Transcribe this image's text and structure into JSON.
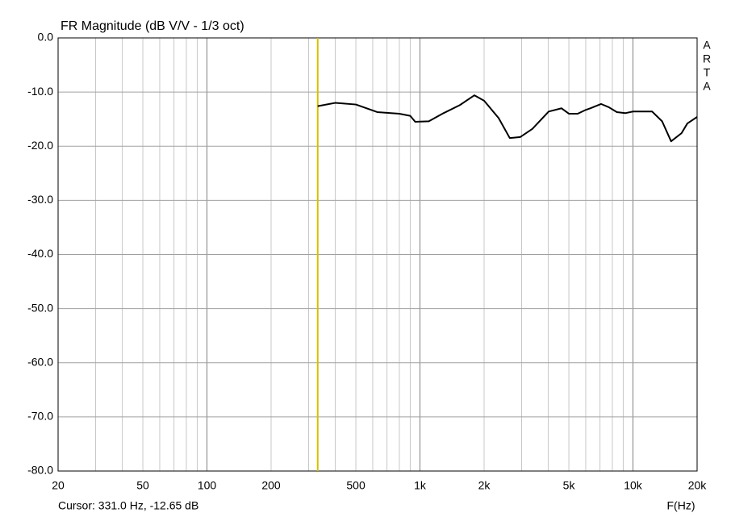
{
  "chart_data": {
    "type": "line",
    "title": "FR Magnitude (dB V/V - 1/3 oct)",
    "side_label": [
      "A",
      "R",
      "T",
      "A"
    ],
    "x_label": "F(Hz)",
    "x_scale": "log",
    "xlim": [
      20,
      20000
    ],
    "ylim": [
      -80,
      0
    ],
    "xticks": [
      20,
      50,
      100,
      200,
      500,
      {
        "value": 1000,
        "label": "1k"
      },
      {
        "value": 2000,
        "label": "2k"
      },
      {
        "value": 5000,
        "label": "5k"
      },
      {
        "value": 10000,
        "label": "10k"
      },
      {
        "value": 20000,
        "label": "20k"
      }
    ],
    "xminorticks": [
      30,
      40,
      60,
      70,
      80,
      90,
      300,
      400,
      600,
      700,
      800,
      900,
      3000,
      4000,
      6000,
      7000,
      8000,
      9000
    ],
    "yticks": [
      {
        "value": 0,
        "label": "0.0"
      },
      {
        "value": -10,
        "label": "-10.0"
      },
      {
        "value": -20,
        "label": "-20.0"
      },
      {
        "value": -30,
        "label": "-30.0"
      },
      {
        "value": -40,
        "label": "-40.0"
      },
      {
        "value": -50,
        "label": "-50.0"
      },
      {
        "value": -60,
        "label": "-60.0"
      },
      {
        "value": -70,
        "label": "-70.0"
      },
      {
        "value": -80,
        "label": "-80.0"
      }
    ],
    "grid": true,
    "cursor": {
      "x": 331,
      "color": "#d4c000",
      "label": "Cursor: 331.0 Hz, -12.65 dB"
    },
    "x": [
      331,
      400,
      500,
      630,
      800,
      900,
      950,
      1100,
      1290,
      1540,
      1800,
      2000,
      2340,
      2640,
      2960,
      3370,
      4020,
      4620,
      5000,
      5500,
      6000,
      6300,
      7080,
      7700,
      8400,
      9200,
      10000,
      12300,
      13700,
      15100,
      16900,
      18000,
      20000
    ],
    "series": [
      {
        "color": "#000000",
        "values": [
          -12.6,
          -12.0,
          -12.3,
          -13.7,
          -14.0,
          -14.4,
          -15.5,
          -15.4,
          -13.9,
          -12.4,
          -10.6,
          -11.6,
          -14.8,
          -18.5,
          -18.3,
          -16.8,
          -13.6,
          -13.0,
          -14.0,
          -14.0,
          -13.3,
          -13.0,
          -12.2,
          -12.8,
          -13.7,
          -13.9,
          -13.6,
          -13.6,
          -15.4,
          -19.1,
          -17.6,
          -15.8,
          -14.6
        ]
      }
    ]
  }
}
